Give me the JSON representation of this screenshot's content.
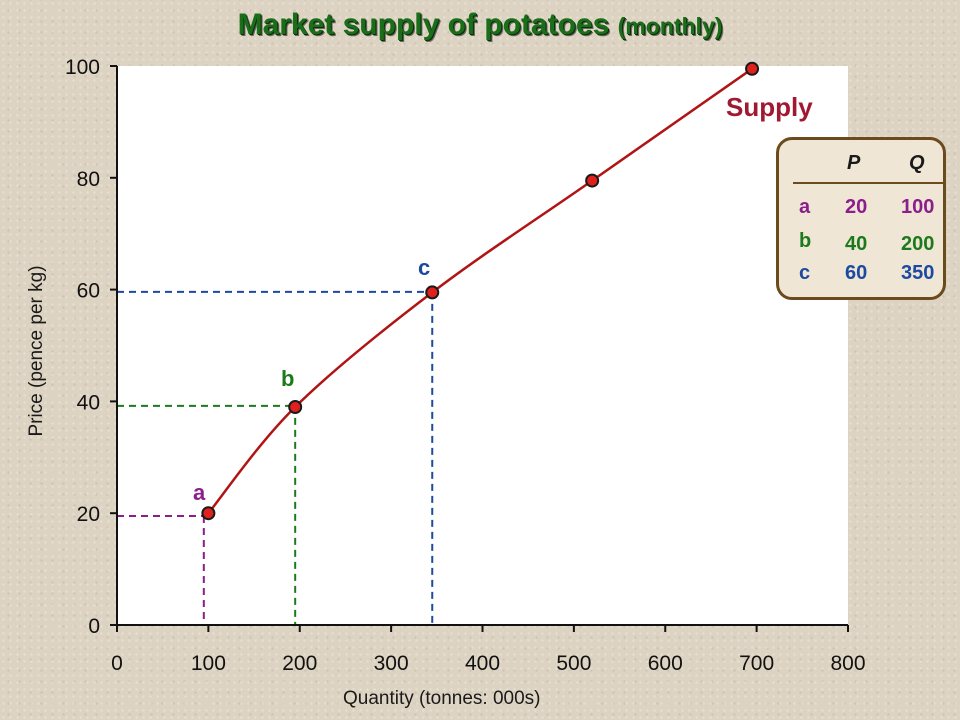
{
  "title": {
    "main": "Market supply of potatoes",
    "sub": "(monthly)"
  },
  "colors": {
    "curve": "#b01414",
    "point_fill": "#e0201c",
    "a": "#8b1e8b",
    "b": "#1c7a1c",
    "c": "#1c4aa0",
    "supply": "#a01832",
    "title": "#1a6e1a"
  },
  "chart_data": {
    "type": "line",
    "title": "Market supply of potatoes (monthly)",
    "xlabel": "Quantity (tonnes: 000s)",
    "ylabel": "Price (pence per kg)",
    "xlim": [
      0,
      800
    ],
    "ylim": [
      0,
      100
    ],
    "x_ticks": [
      "0",
      "100",
      "200",
      "300",
      "400",
      "500",
      "600",
      "700",
      "800"
    ],
    "y_ticks": [
      "0",
      "20",
      "40",
      "60",
      "80",
      "100"
    ],
    "series": [
      {
        "name": "Supply",
        "points": [
          {
            "x": 100,
            "y": 20
          },
          {
            "x": 195,
            "y": 39
          },
          {
            "x": 345,
            "y": 59.5
          },
          {
            "x": 520,
            "y": 79.5
          },
          {
            "x": 695,
            "y": 99.5
          }
        ]
      }
    ],
    "annotations": [
      {
        "label": "a",
        "x": 95,
        "y": 19.5,
        "color": "#8b1e8b"
      },
      {
        "label": "b",
        "x": 195,
        "y": 39.2,
        "color": "#1c7a1c"
      },
      {
        "label": "c",
        "x": 345,
        "y": 59.6,
        "color": "#1c4aa0"
      }
    ],
    "grid": false
  },
  "schedule": {
    "headers": {
      "p": "P",
      "q": "Q"
    },
    "rows": [
      {
        "label": "a",
        "p": "20",
        "q": "100",
        "color": "#8b1e8b"
      },
      {
        "label": "b",
        "p": "40",
        "q": "200",
        "color": "#1c7a1c"
      },
      {
        "label": "c",
        "p": "60",
        "q": "350",
        "color": "#1c4aa0"
      }
    ]
  }
}
